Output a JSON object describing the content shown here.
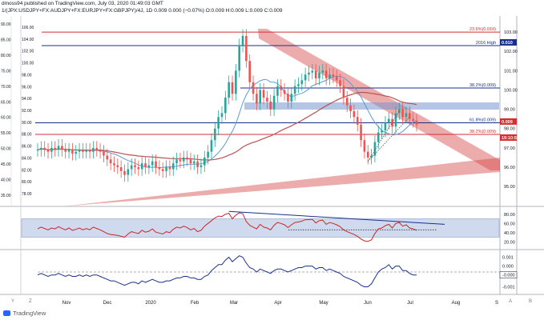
{
  "header": {
    "published": "dmoss94 published on TradingView.com, July 03, 2020 01:49:03 GMT",
    "symbol": "1/(JPX:USDJPY+FX:AUDJPY+FX:EURJPY+FX:GBPJPY)/4J, 1D",
    "ohlc": "0.009 0.000 (−0.07%) O:0.009 H:0.009 L:0.009 C:0.009"
  },
  "footer": {
    "brand": "TradingView"
  },
  "colors": {
    "up": "#26a69a",
    "down": "#ef5350",
    "candle": "#8b1a1a",
    "navy": "#1a2f8c",
    "red_line": "#d32f2f",
    "ma_blue": "#5b9bd5",
    "ma_red": "#b85450",
    "band_red": "rgba(214,72,72,0.45)",
    "zone_blue": "rgba(120,150,210,0.55)",
    "rsi_zone": "rgba(120,150,210,0.35)"
  },
  "chart_data": [
    {
      "type": "candlestick",
      "title": "1/(JPX:USDJPY+FX:AUDJPY+FX:EURJPY+FX:GBPJPY)/4J, 1D",
      "x_tick_labels": [
        "Nov",
        "Dec",
        "2020",
        "Feb",
        "Mar",
        "Apr",
        "May",
        "Jun",
        "Jul",
        "Aug",
        "S"
      ],
      "right_axis_ticks": [
        "103.00",
        "102.00",
        "101.00",
        "100.00",
        "99.00",
        "98.00",
        "97.00",
        "96.00",
        "95.00"
      ],
      "left_axis_ticks": [
        "90.00",
        "88.00",
        "86.00",
        "84.00",
        "82.00",
        "80.00",
        "78.00"
      ],
      "left_axis_ticks_scaled": [
        "106.00",
        "104.00",
        "102.00",
        "100.00",
        "98.00",
        "96.00",
        "94.00",
        "92.00",
        "90.00",
        "88.00",
        "86.00",
        "84.00",
        "82.00",
        "80.00",
        "78.00"
      ],
      "left_axis_ticks_pct": [
        "90.00",
        "85.00",
        "80.00",
        "75.00",
        "70.00",
        "65.00",
        "60.00",
        "55.00",
        "50.00",
        "45.00",
        "40.00",
        "35.00"
      ],
      "ylim": [
        94.3,
        103.5
      ],
      "horizontal_levels": [
        {
          "label": "23.6%(0.010)",
          "value": 103.0
        },
        {
          "label": "2016 High",
          "value": 102.3
        },
        {
          "label": "38.2%(0.009)",
          "value": 100.1
        },
        {
          "label": "61.8%(0.009)",
          "value": 98.3
        },
        {
          "label": "38.2%(0.009)",
          "value": 97.7
        }
      ],
      "price_tags": [
        {
          "label": "0.010",
          "value": 102.3
        },
        {
          "label": "0.009",
          "value": 98.2
        },
        {
          "label": "19:10:56",
          "value": 97.7
        }
      ],
      "close": [
        96.9,
        97.0,
        96.9,
        96.8,
        97.0,
        96.9,
        97.1,
        96.9,
        96.8,
        96.9,
        96.7,
        96.8,
        96.9,
        96.8,
        96.9,
        96.8,
        97.0,
        96.9,
        96.8,
        96.6,
        96.4,
        96.2,
        96.1,
        96.0,
        95.8,
        95.6,
        95.9,
        96.1,
        96.0,
        95.9,
        96.2,
        96.0,
        96.1,
        96.3,
        96.0,
        95.9,
        95.8,
        96.0,
        95.9,
        96.2,
        96.4,
        96.3,
        96.5,
        96.4,
        96.2,
        96.3,
        96.0,
        96.1,
        96.5,
        96.8,
        97.4,
        98.0,
        98.6,
        98.8,
        99.6,
        100.4,
        99.8,
        101.0,
        102.3,
        102.8,
        101.5,
        100.4,
        99.8,
        99.3,
        100.0,
        99.6,
        99.4,
        99.0,
        99.7,
        100.2,
        100.0,
        99.8,
        99.4,
        99.8,
        100.2,
        100.3,
        100.5,
        100.8,
        100.9,
        101.0,
        100.6,
        100.9,
        101.0,
        100.6,
        100.8,
        100.7,
        100.5,
        100.2,
        99.6,
        99.2,
        98.9,
        98.6,
        98.2,
        97.4,
        96.8,
        96.5,
        96.6,
        97.3,
        97.8,
        97.9,
        98.3,
        98.5,
        98.1,
        98.8,
        99.0,
        98.6,
        98.8,
        98.5,
        98.4,
        98.2
      ]
    },
    {
      "type": "line",
      "title": "RSI",
      "right_axis_ticks": [
        "80.00",
        "60.00",
        "40.00",
        "20.00"
      ],
      "zone": [
        30,
        70
      ],
      "ylim": [
        10,
        90
      ],
      "values": [
        48,
        52,
        49,
        46,
        50,
        48,
        53,
        49,
        46,
        50,
        45,
        47,
        50,
        46,
        49,
        46,
        52,
        49,
        46,
        42,
        38,
        36,
        35,
        34,
        32,
        30,
        37,
        42,
        40,
        38,
        45,
        41,
        43,
        48,
        41,
        39,
        37,
        42,
        40,
        47,
        52,
        50,
        54,
        51,
        46,
        49,
        42,
        45,
        54,
        60,
        66,
        72,
        76,
        75,
        80,
        82,
        70,
        78,
        83,
        81,
        64,
        56,
        52,
        48,
        58,
        52,
        50,
        46,
        56,
        62,
        60,
        57,
        51,
        57,
        62,
        63,
        65,
        68,
        68,
        69,
        61,
        66,
        67,
        58,
        62,
        60,
        57,
        53,
        46,
        42,
        39,
        36,
        32,
        26,
        22,
        21,
        24,
        38,
        48,
        50,
        55,
        58,
        50,
        60,
        62,
        54,
        57,
        50,
        48,
        45
      ]
    },
    {
      "type": "line",
      "title": "Oscillator",
      "right_axis_ticks": [
        "0.001",
        "0.000",
        "-0.000",
        "-0.001"
      ],
      "ylim": [
        -0.0013,
        0.0013
      ],
      "values": [
        -0.0002,
        -0.0001,
        -0.0002,
        -0.0003,
        -0.0002,
        -0.0002,
        -0.0001,
        -0.0002,
        -0.0003,
        -0.0002,
        -0.0003,
        -0.0003,
        -0.0002,
        -0.0003,
        -0.0002,
        -0.0003,
        -0.0002,
        -0.0002,
        -0.0003,
        -0.0004,
        -0.0005,
        -0.0006,
        -0.0006,
        -0.0007,
        -0.0008,
        -0.0009,
        -0.0008,
        -0.0007,
        -0.0007,
        -0.0008,
        -0.0006,
        -0.0007,
        -0.0006,
        -0.0005,
        -0.0006,
        -0.0007,
        -0.0007,
        -0.0006,
        -0.0006,
        -0.0005,
        -0.0004,
        -0.0004,
        -0.0003,
        -0.0003,
        -0.0004,
        -0.0004,
        -0.0005,
        -0.0005,
        -0.0003,
        -0.0002,
        0.0001,
        0.0003,
        0.0005,
        0.0005,
        0.0008,
        0.001,
        0.0007,
        0.0009,
        0.0011,
        0.001,
        0.0006,
        0.0003,
        0.0002,
        0.0,
        0.0002,
        0.0001,
        0.0,
        -0.0001,
        0.0001,
        0.0002,
        0.0002,
        0.0001,
        0.0,
        0.0001,
        0.0002,
        0.0003,
        0.0003,
        0.0004,
        0.0004,
        0.0004,
        0.0002,
        0.0003,
        0.0003,
        0.0001,
        0.0002,
        0.0001,
        0.0,
        -0.0001,
        -0.0003,
        -0.0004,
        -0.0005,
        -0.0006,
        -0.0007,
        -0.0009,
        -0.001,
        -0.001,
        -0.0008,
        -0.0004,
        0.0,
        0.0002,
        0.0003,
        0.0005,
        0.0002,
        0.0004,
        0.0004,
        0.0001,
        0.0001,
        -0.0001,
        -0.0002,
        -0.0002
      ],
      "last_value_label": "-0.000"
    }
  ]
}
